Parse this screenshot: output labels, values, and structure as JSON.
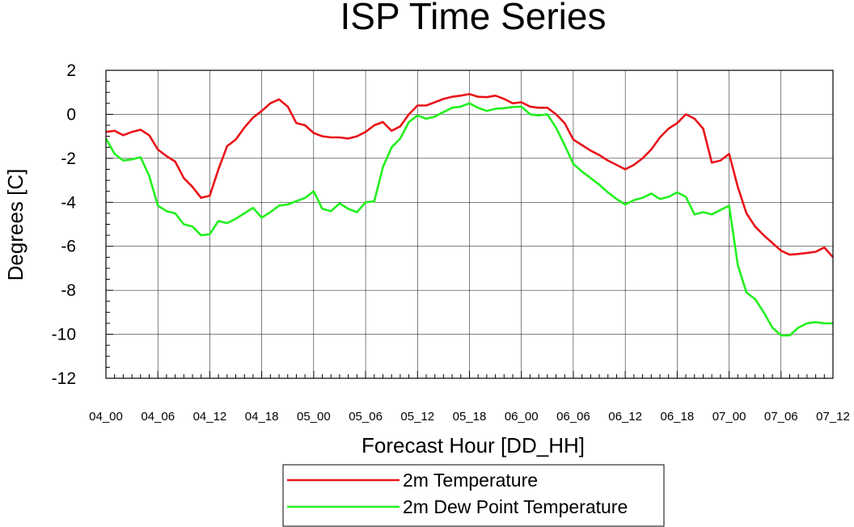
{
  "chart_data": {
    "type": "line",
    "title": "ISP Time Series",
    "xlabel": "Forecast Hour [DD_HH]",
    "ylabel": "Degrees [C]",
    "ylim": [
      -12,
      2
    ],
    "xlim": [
      0,
      84
    ],
    "yticks": [
      "2",
      "0",
      "-2",
      "-4",
      "-6",
      "-8",
      "-10",
      "-12"
    ],
    "xticks": [
      "04_00",
      "04_06",
      "04_12",
      "04_18",
      "05_00",
      "05_06",
      "05_12",
      "05_18",
      "06_00",
      "06_06",
      "06_12",
      "06_18",
      "07_00",
      "07_06",
      "07_12"
    ],
    "grid": true,
    "legend": "bottom",
    "series": [
      {
        "name": "2m Temperature",
        "color": "#e8141a",
        "x": [
          0,
          1,
          2,
          3,
          4,
          5,
          6,
          7,
          8,
          9,
          10,
          11,
          12,
          13,
          14,
          15,
          16,
          17,
          18,
          19,
          20,
          21,
          22,
          23,
          24,
          25,
          26,
          27,
          28,
          29,
          30,
          31,
          32,
          33,
          34,
          35,
          36,
          37,
          38,
          39,
          40,
          41,
          42,
          43,
          44,
          45,
          46,
          47,
          48,
          49,
          50,
          51,
          52,
          53,
          54,
          55,
          56,
          57,
          58,
          59,
          60,
          61,
          62,
          63,
          64,
          65,
          66,
          67,
          68,
          69,
          70,
          71,
          72,
          73,
          74,
          75,
          76,
          77,
          78,
          79,
          80,
          81,
          82,
          83,
          84
        ],
        "y": [
          -0.8,
          -0.75,
          -0.95,
          -0.8,
          -0.7,
          -0.95,
          -1.6,
          -1.9,
          -2.15,
          -2.9,
          -3.3,
          -3.8,
          -3.7,
          -2.5,
          -1.45,
          -1.15,
          -0.6,
          -0.15,
          0.15,
          0.5,
          0.68,
          0.35,
          -0.4,
          -0.5,
          -0.85,
          -1.0,
          -1.05,
          -1.05,
          -1.1,
          -1.0,
          -0.8,
          -0.5,
          -0.35,
          -0.75,
          -0.55,
          0.0,
          0.4,
          0.4,
          0.55,
          0.7,
          0.8,
          0.85,
          0.92,
          0.8,
          0.78,
          0.85,
          0.7,
          0.5,
          0.55,
          0.35,
          0.3,
          0.3,
          0.0,
          -0.4,
          -1.15,
          -1.4,
          -1.65,
          -1.85,
          -2.1,
          -2.3,
          -2.5,
          -2.3,
          -2.0,
          -1.6,
          -1.05,
          -0.65,
          -0.4,
          0.0,
          -0.2,
          -0.65,
          -2.2,
          -2.1,
          -1.8,
          -3.3,
          -4.5,
          -5.1,
          -5.5,
          -5.85,
          -6.2,
          -6.38,
          -6.35,
          -6.3,
          -6.25,
          -6.05,
          -6.5
        ]
      },
      {
        "name": "2m Dew Point Temperature",
        "color": "#22f01e",
        "x": [
          0,
          1,
          2,
          3,
          4,
          5,
          6,
          7,
          8,
          9,
          10,
          11,
          12,
          13,
          14,
          15,
          16,
          17,
          18,
          19,
          20,
          21,
          22,
          23,
          24,
          25,
          26,
          27,
          28,
          29,
          30,
          31,
          32,
          33,
          34,
          35,
          36,
          37,
          38,
          39,
          40,
          41,
          42,
          43,
          44,
          45,
          46,
          47,
          48,
          49,
          50,
          51,
          52,
          53,
          54,
          55,
          56,
          57,
          58,
          59,
          60,
          61,
          62,
          63,
          64,
          65,
          66,
          67,
          68,
          69,
          70,
          71,
          72,
          73,
          74,
          75,
          76,
          77,
          78,
          79,
          80,
          81,
          82,
          83,
          84
        ],
        "y": [
          -1.1,
          -1.8,
          -2.1,
          -2.05,
          -1.95,
          -2.8,
          -4.15,
          -4.4,
          -4.5,
          -5.0,
          -5.1,
          -5.5,
          -5.45,
          -4.85,
          -4.95,
          -4.75,
          -4.5,
          -4.25,
          -4.7,
          -4.45,
          -4.15,
          -4.1,
          -3.95,
          -3.8,
          -3.5,
          -4.3,
          -4.4,
          -4.05,
          -4.3,
          -4.45,
          -4.0,
          -3.95,
          -2.4,
          -1.5,
          -1.1,
          -0.35,
          -0.05,
          -0.2,
          -0.1,
          0.1,
          0.3,
          0.35,
          0.5,
          0.3,
          0.15,
          0.25,
          0.28,
          0.33,
          0.35,
          0.0,
          -0.05,
          0.0,
          -0.6,
          -1.4,
          -2.25,
          -2.6,
          -2.9,
          -3.2,
          -3.55,
          -3.85,
          -4.1,
          -3.9,
          -3.8,
          -3.6,
          -3.85,
          -3.75,
          -3.55,
          -3.75,
          -4.55,
          -4.45,
          -4.55,
          -4.35,
          -4.15,
          -6.85,
          -8.1,
          -8.4,
          -9.0,
          -9.7,
          -10.05,
          -10.05,
          -9.7,
          -9.5,
          -9.45,
          -9.5,
          -9.5
        ]
      }
    ]
  }
}
